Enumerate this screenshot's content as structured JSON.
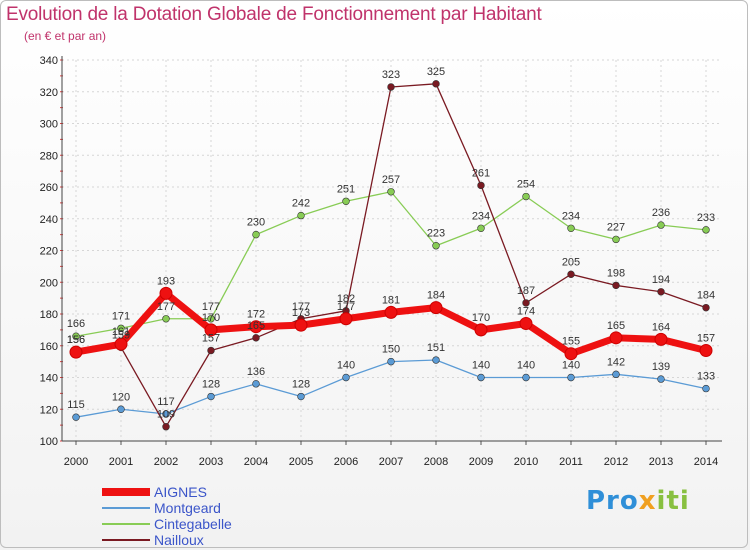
{
  "header": {
    "title": "Evolution de la Dotation Globale de Fonctionnement par Habitant",
    "subtitle": "(en € et par an)"
  },
  "logo": {
    "text": "Proxiti",
    "part1": "Pro",
    "part2": "x",
    "part3": "iti"
  },
  "chart_data": {
    "type": "line",
    "title": "Evolution de la Dotation Globale de Fonctionnement par Habitant",
    "subtitle": "(en € et par an)",
    "xlabel": "",
    "ylabel": "",
    "x": [
      "2000",
      "2001",
      "2002",
      "2003",
      "2004",
      "2005",
      "2006",
      "2007",
      "2008",
      "2009",
      "2010",
      "2011",
      "2012",
      "2013",
      "2014"
    ],
    "ylim": [
      100,
      340
    ],
    "yticks": [
      100,
      120,
      140,
      160,
      180,
      200,
      220,
      240,
      260,
      280,
      300,
      320,
      340
    ],
    "grid": true,
    "legend": "bottom-left",
    "series": [
      {
        "name": "AIGNES",
        "color": "#ee1111",
        "values": [
          156,
          161,
          193,
          170,
          172,
          173,
          177,
          181,
          184,
          170,
          174,
          155,
          165,
          164,
          157
        ],
        "labels": [
          "156",
          "161",
          "193",
          "170",
          "172",
          "173",
          "177",
          "181",
          "184",
          "170",
          "174",
          "155",
          "165",
          "164",
          "157"
        ]
      },
      {
        "name": "Montgeard",
        "color": "#5b9bd5",
        "values": [
          115,
          120,
          117,
          128,
          136,
          128,
          140,
          150,
          151,
          140,
          140,
          140,
          142,
          139,
          133
        ],
        "labels": [
          "115",
          "120",
          "117",
          "128",
          "136",
          "128",
          "140",
          "150",
          "151",
          "140",
          "140",
          "140",
          "142",
          "139",
          "133"
        ]
      },
      {
        "name": "Cintegabelle",
        "color": "#88cc55",
        "values": [
          166,
          171,
          177,
          177,
          230,
          242,
          251,
          257,
          223,
          234,
          254,
          234,
          227,
          236,
          233
        ],
        "labels": [
          "166",
          "171",
          "177",
          "177",
          "230",
          "242",
          "251",
          "257",
          "223",
          "234",
          "254",
          "234",
          "227",
          "236",
          "233"
        ]
      },
      {
        "name": "Nailloux",
        "color": "#7a1a22",
        "values": [
          156,
          159,
          109,
          157,
          165,
          177,
          182,
          323,
          325,
          261,
          187,
          205,
          198,
          194,
          184
        ],
        "labels": [
          "156",
          "159",
          "109",
          "157",
          "165",
          "177",
          "182",
          "323",
          "325",
          "261",
          "187",
          "205",
          "198",
          "194",
          "184"
        ]
      }
    ]
  }
}
